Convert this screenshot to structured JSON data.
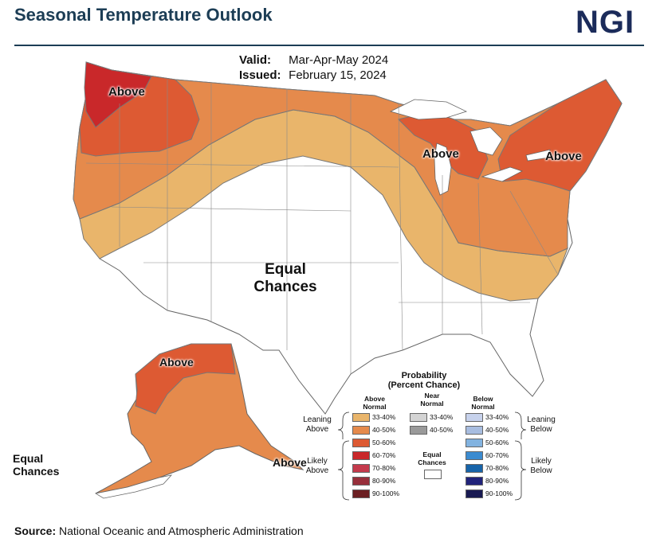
{
  "header": {
    "title": "Seasonal Temperature Outlook",
    "logo_text": "NGI"
  },
  "validity": {
    "valid_label": "Valid:",
    "valid_value": "Mar-Apr-May 2024",
    "issued_label": "Issued:",
    "issued_value": "February 15, 2024"
  },
  "map_labels": {
    "northwest": "Above",
    "great_lakes": "Above",
    "northeast": "Above",
    "center_line1": "Equal",
    "center_line2": "Chances",
    "alaska_north": "Above",
    "alaska_south": "Above",
    "alaska_ec_line1": "Equal",
    "alaska_ec_line2": "Chances"
  },
  "legend": {
    "title_line1": "Probability",
    "title_line2": "(Percent Chance)",
    "above_head_1": "Above",
    "above_head_2": "Normal",
    "near_head_1": "Near",
    "near_head_2": "Normal",
    "below_head_1": "Below",
    "below_head_2": "Normal",
    "leaning_above_1": "Leaning",
    "leaning_above_2": "Above",
    "likely_above_1": "Likely",
    "likely_above_2": "Above",
    "leaning_below_1": "Leaning",
    "leaning_below_2": "Below",
    "likely_below_1": "Likely",
    "likely_below_2": "Below",
    "equal_1": "Equal",
    "equal_2": "Chances",
    "above": [
      {
        "label": "33-40%",
        "color": "#e9b56b"
      },
      {
        "label": "40-50%",
        "color": "#e58a4c"
      },
      {
        "label": "50-60%",
        "color": "#dd5a33"
      },
      {
        "label": "60-70%",
        "color": "#c9282a"
      },
      {
        "label": "70-80%",
        "color": "#c43a4c"
      },
      {
        "label": "80-90%",
        "color": "#972f3b"
      },
      {
        "label": "90-100%",
        "color": "#6b1f22"
      }
    ],
    "near": [
      {
        "label": "33-40%",
        "color": "#d4d4d4"
      },
      {
        "label": "40-50%",
        "color": "#9a9a9a"
      }
    ],
    "below": [
      {
        "label": "33-40%",
        "color": "#c7d2ec"
      },
      {
        "label": "40-50%",
        "color": "#a8bde0"
      },
      {
        "label": "50-60%",
        "color": "#82b3e0"
      },
      {
        "label": "60-70%",
        "color": "#3b8bd0"
      },
      {
        "label": "70-80%",
        "color": "#1764a9"
      },
      {
        "label": "80-90%",
        "color": "#21237a"
      },
      {
        "label": "90-100%",
        "color": "#191a52"
      }
    ]
  },
  "source": {
    "label": "Source:",
    "text": "National Oceanic and Atmospheric Administration"
  }
}
